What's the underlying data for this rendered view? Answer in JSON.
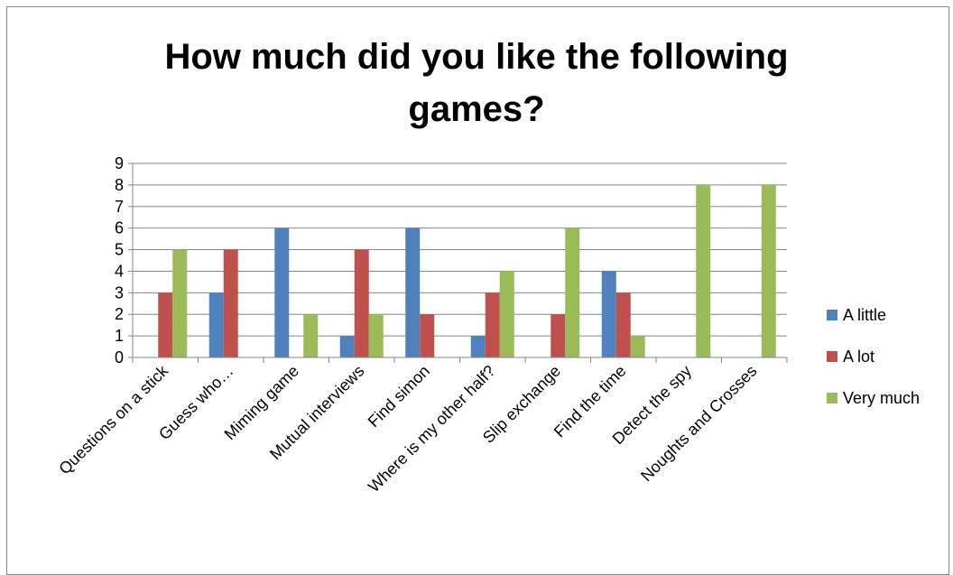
{
  "chart_data": {
    "type": "bar",
    "title_lines": [
      "How much did you like the following",
      "games?"
    ],
    "xlabel": "",
    "ylabel": "",
    "ylim": [
      0,
      9
    ],
    "yticks": [
      0,
      1,
      2,
      3,
      4,
      5,
      6,
      7,
      8,
      9
    ],
    "grid": true,
    "legend_position": "right",
    "categories": [
      "Questions on a stick",
      "Guess who…",
      "Miming game",
      "Mutual interviews",
      "Find simon",
      "Where is my other half?",
      "Slip exchange",
      "Find the time",
      "Detect the spy",
      "Noughts and Crosses"
    ],
    "series": [
      {
        "name": "A little",
        "color": "#4f81bd",
        "values": [
          0,
          3,
          6,
          1,
          6,
          1,
          0,
          4,
          0,
          0
        ]
      },
      {
        "name": "A lot",
        "color": "#c0504d",
        "values": [
          3,
          5,
          0,
          5,
          2,
          3,
          2,
          3,
          0,
          0
        ]
      },
      {
        "name": "Very much",
        "color": "#9bbb59",
        "values": [
          5,
          0,
          2,
          2,
          0,
          4,
          6,
          1,
          8,
          8
        ]
      }
    ]
  }
}
